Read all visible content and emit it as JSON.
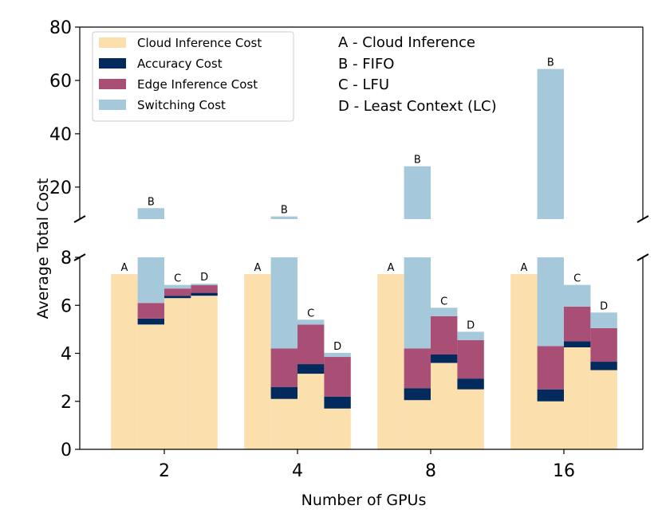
{
  "chart_data": {
    "type": "bar",
    "subtype": "stacked-grouped-broken-axis",
    "xlabel": "Number of GPUs",
    "ylabel": "Average Total Cost",
    "categories": [
      "2",
      "4",
      "8",
      "16"
    ],
    "ylim_lower": [
      0,
      8
    ],
    "ylim_upper": [
      8,
      80
    ],
    "yticks_lower": [
      "0",
      "2",
      "4",
      "6",
      "8"
    ],
    "yticks_upper": [
      "20",
      "40",
      "60",
      "80"
    ],
    "methods": [
      "A",
      "B",
      "C",
      "D"
    ],
    "method_legend": [
      "A - Cloud Inference",
      "B - FIFO",
      "C - LFU",
      "D - Least Context (LC)"
    ],
    "components": [
      {
        "name": "Cloud Inference Cost",
        "color": "#fbe0ae"
      },
      {
        "name": "Accuracy Cost",
        "color": "#022a5c"
      },
      {
        "name": "Edge Inference Cost",
        "color": "#a94f76"
      },
      {
        "name": "Switching Cost",
        "color": "#a5c8da"
      }
    ],
    "series": [
      {
        "name": "Cloud Inference Cost",
        "values": {
          "2": {
            "A": 7.3,
            "B": 5.2,
            "C": 6.3,
            "D": 6.4
          },
          "4": {
            "A": 7.3,
            "B": 2.1,
            "C": 3.15,
            "D": 1.7
          },
          "8": {
            "A": 7.3,
            "B": 2.05,
            "C": 3.6,
            "D": 2.5
          },
          "16": {
            "A": 7.3,
            "B": 2.0,
            "C": 4.25,
            "D": 3.3
          }
        }
      },
      {
        "name": "Accuracy Cost",
        "values": {
          "2": {
            "A": 0,
            "B": 0.25,
            "C": 0.1,
            "D": 0.12
          },
          "4": {
            "A": 0,
            "B": 0.5,
            "C": 0.4,
            "D": 0.5
          },
          "8": {
            "A": 0,
            "B": 0.5,
            "C": 0.35,
            "D": 0.45
          },
          "16": {
            "A": 0,
            "B": 0.5,
            "C": 0.25,
            "D": 0.35
          }
        }
      },
      {
        "name": "Edge Inference Cost",
        "values": {
          "2": {
            "A": 0,
            "B": 0.65,
            "C": 0.3,
            "D": 0.32
          },
          "4": {
            "A": 0,
            "B": 1.6,
            "C": 1.65,
            "D": 1.65
          },
          "8": {
            "A": 0,
            "B": 1.65,
            "C": 1.6,
            "D": 1.6
          },
          "16": {
            "A": 0,
            "B": 1.8,
            "C": 1.45,
            "D": 1.4
          }
        }
      },
      {
        "name": "Switching Cost",
        "values": {
          "2": {
            "A": 0,
            "B": 6.0,
            "C": 0.15,
            "D": 0.06
          },
          "4": {
            "A": 0,
            "B": 4.8,
            "C": 0.2,
            "D": 0.17
          },
          "8": {
            "A": 0,
            "B": 23.6,
            "C": 0.35,
            "D": 0.35
          },
          "16": {
            "A": 0,
            "B": 60.0,
            "C": 0.9,
            "D": 0.65
          }
        }
      }
    ],
    "legend_position": "upper-left"
  }
}
